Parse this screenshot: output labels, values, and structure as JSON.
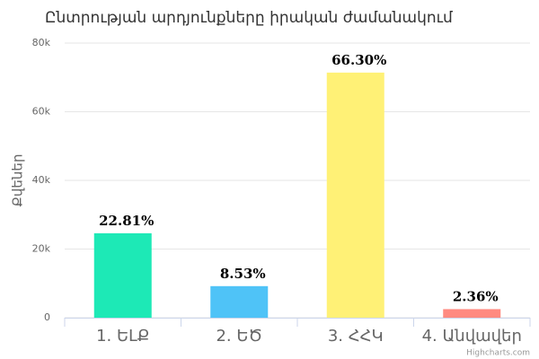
{
  "chart_data": {
    "type": "bar",
    "title": "Ընտրության արդյունքները իրական ժամանակում",
    "y_axis_label": "Քվեներ",
    "categories": [
      "1. ԵԼՔ",
      "2. ԵԾ",
      "3. ՀՀԿ",
      "4. Անվավեր"
    ],
    "values": [
      24600,
      9200,
      71400,
      2500
    ],
    "data_labels": [
      "22.81%",
      "8.53%",
      "66.30%",
      "2.36%"
    ],
    "colors": [
      "#1de9b6",
      "#4fc3f7",
      "#fff176",
      "#ff8a80"
    ],
    "ylim": [
      0,
      80000
    ],
    "yticks": [
      0,
      {
        "value": 20000,
        "label": "20k"
      },
      {
        "value": 40000,
        "label": "40k"
      },
      {
        "value": 60000,
        "label": "60k"
      },
      {
        "value": 80000,
        "label": "80k"
      }
    ],
    "grid": true,
    "credits": "Highcharts.com"
  }
}
